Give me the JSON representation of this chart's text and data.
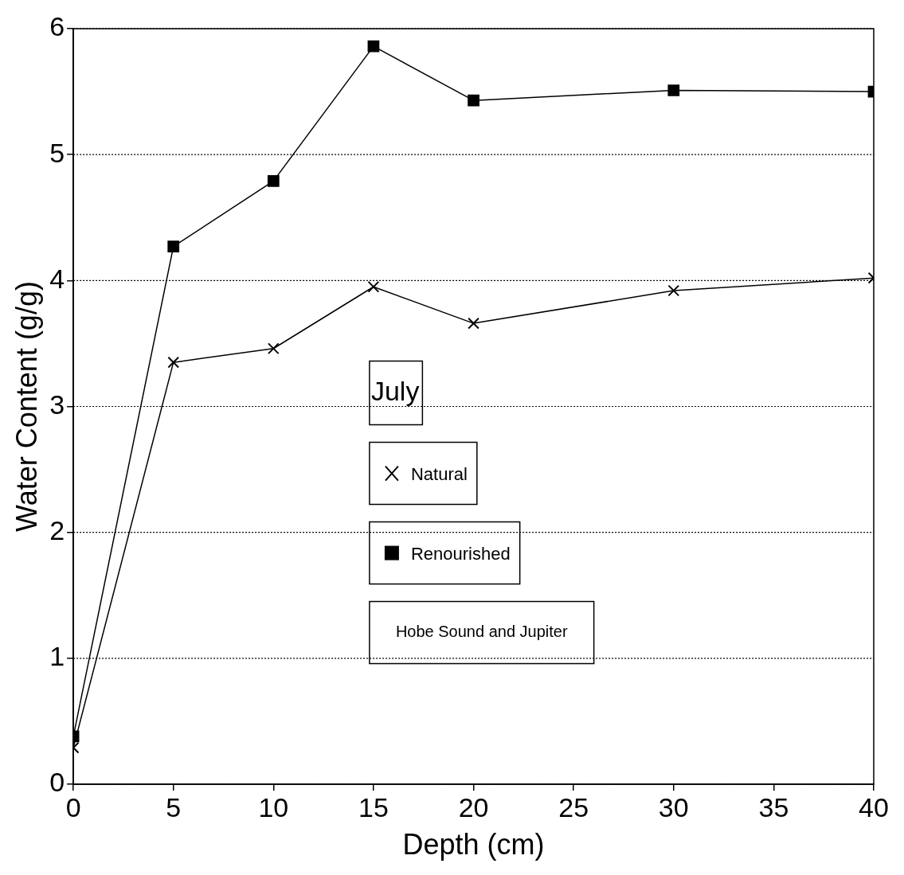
{
  "chart_data": {
    "type": "line",
    "xlabel": "Depth (cm)",
    "ylabel": "Water Content (g/g)",
    "x": [
      0,
      5,
      10,
      15,
      20,
      30,
      40
    ],
    "series": [
      {
        "name": "Natural",
        "color": "#000000",
        "marker": "cross",
        "values": [
          0.29,
          3.35,
          3.46,
          3.95,
          3.66,
          3.92,
          4.02
        ]
      },
      {
        "name": "Renourished",
        "color": "#000000",
        "marker": "square",
        "values": [
          0.38,
          4.27,
          4.79,
          5.86,
          5.43,
          5.51,
          5.5
        ]
      }
    ],
    "xlim": [
      0,
      40
    ],
    "xticks": [
      0,
      5,
      10,
      15,
      20,
      25,
      30,
      35,
      40
    ],
    "ylim": [
      0,
      6
    ],
    "yticks": [
      0,
      1,
      2,
      3,
      4,
      5,
      6
    ],
    "grid": "y",
    "legend": "center",
    "annotations": [
      "July",
      "Hobe Sound and Jupiter"
    ]
  }
}
